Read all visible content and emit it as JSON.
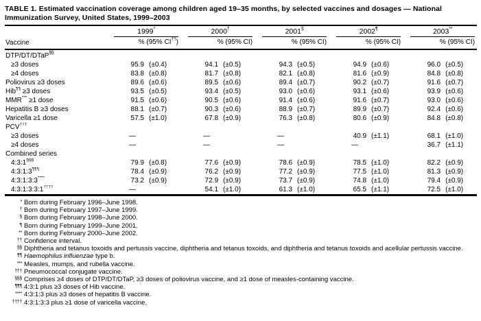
{
  "title": "TABLE 1. Estimated vaccination coverage among children aged 19–35 months, by selected vaccines and dosages — National Immunization Survey, United States, 1999–2003",
  "colors": {
    "text": "#000000",
    "background": "#ffffff",
    "rule": "#000000"
  },
  "table": {
    "vaccine_header": "Vaccine",
    "years": [
      {
        "year": "1999",
        "year_sup": "*",
        "subheader": "% (95% CI",
        "subheader_sup": "††",
        "subheader_close": ")"
      },
      {
        "year": "2000",
        "year_sup": "†",
        "subheader": "% (95% CI",
        "subheader_sup": "",
        "subheader_close": ")"
      },
      {
        "year": "2001",
        "year_sup": "§",
        "subheader": "% (95% CI",
        "subheader_sup": "",
        "subheader_close": ")"
      },
      {
        "year": "2002",
        "year_sup": "¶",
        "subheader": "% (95% CI",
        "subheader_sup": "",
        "subheader_close": ")"
      },
      {
        "year": "2003",
        "year_sup": "**",
        "subheader": "% (95% CI",
        "subheader_sup": "",
        "subheader_close": ")"
      }
    ],
    "rows": [
      {
        "group": true,
        "indent": false,
        "label": "DTP/DT/DTaP",
        "sup": "§§",
        "label2": "",
        "cells": null
      },
      {
        "group": false,
        "indent": true,
        "label": "≥3 doses",
        "sup": "",
        "label2": "",
        "cells": [
          [
            "95.9",
            "(±0.4)"
          ],
          [
            "94.1",
            "(±0.5)"
          ],
          [
            "94.3",
            "(±0.5)"
          ],
          [
            "94.9",
            "(±0.6)"
          ],
          [
            "96.0",
            "(±0.5)"
          ]
        ]
      },
      {
        "group": false,
        "indent": true,
        "label": "≥4 doses",
        "sup": "",
        "label2": "",
        "cells": [
          [
            "83.8",
            "(±0.8)"
          ],
          [
            "81.7",
            "(±0.8)"
          ],
          [
            "82.1",
            "(±0.8)"
          ],
          [
            "81.6",
            "(±0.9)"
          ],
          [
            "84.8",
            "(±0.8)"
          ]
        ]
      },
      {
        "group": false,
        "indent": false,
        "label": "Poliovirus ≥3 doses",
        "sup": "",
        "label2": "",
        "cells": [
          [
            "89.6",
            "(±0.6)"
          ],
          [
            "89.5",
            "(±0.6)"
          ],
          [
            "89.4",
            "(±0.7)"
          ],
          [
            "90.2",
            "(±0.7)"
          ],
          [
            "91.6",
            "(±0.7)"
          ]
        ]
      },
      {
        "group": false,
        "indent": false,
        "label": "Hib",
        "sup": "¶¶",
        "label2": " ≥3 doses",
        "cells": [
          [
            "93.5",
            "(±0.5)"
          ],
          [
            "93.4",
            "(±0.5)"
          ],
          [
            "93.0",
            "(±0.6)"
          ],
          [
            "93.1",
            "(±0.6)"
          ],
          [
            "93.9",
            "(±0.6)"
          ]
        ]
      },
      {
        "group": false,
        "indent": false,
        "label": "MMR",
        "sup": "***",
        "label2": " ≥1 dose",
        "cells": [
          [
            "91.5",
            "(±0.6)"
          ],
          [
            "90.5",
            "(±0.6)"
          ],
          [
            "91.4",
            "(±0.6)"
          ],
          [
            "91.6",
            "(±0.7)"
          ],
          [
            "93.0",
            "(±0.6)"
          ]
        ]
      },
      {
        "group": false,
        "indent": false,
        "label": "Hepatitis B ≥3 doses",
        "sup": "",
        "label2": "",
        "cells": [
          [
            "88.1",
            "(±0.7)"
          ],
          [
            "90.3",
            "(±0.6)"
          ],
          [
            "88.9",
            "(±0.7)"
          ],
          [
            "89.9",
            "(±0.7)"
          ],
          [
            "92.4",
            "(±0.6)"
          ]
        ]
      },
      {
        "group": false,
        "indent": false,
        "label": "Varicella ≥1 dose",
        "sup": "",
        "label2": "",
        "cells": [
          [
            "57.5",
            "(±1.0)"
          ],
          [
            "67.8",
            "(±0.9)"
          ],
          [
            "76.3",
            "(±0.8)"
          ],
          [
            "80.6",
            "(±0.9)"
          ],
          [
            "84.8",
            "(±0.8)"
          ]
        ]
      },
      {
        "group": true,
        "indent": false,
        "label": "PCV",
        "sup": "†††",
        "label2": "",
        "cells": null
      },
      {
        "group": false,
        "indent": true,
        "label": "≥3 doses",
        "sup": "",
        "label2": "",
        "cells": [
          [
            "—",
            ""
          ],
          [
            "—",
            ""
          ],
          [
            "—",
            ""
          ],
          [
            "40.9",
            "(±1.1)"
          ],
          [
            "68.1",
            "(±1.0)"
          ]
        ]
      },
      {
        "group": false,
        "indent": true,
        "label": "≥4 doses",
        "sup": "",
        "label2": "",
        "cells": [
          [
            "—",
            ""
          ],
          [
            "—",
            ""
          ],
          [
            "—",
            ""
          ],
          [
            "—",
            ""
          ],
          [
            "36.7",
            "(±1.1)"
          ]
        ]
      },
      {
        "group": true,
        "indent": false,
        "label": "Combined series",
        "sup": "",
        "label2": "",
        "cells": null
      },
      {
        "group": false,
        "indent": true,
        "label": "4:3:1",
        "sup": "§§§",
        "label2": "",
        "cells": [
          [
            "79.9",
            "(±0.8)"
          ],
          [
            "77.6",
            "(±0.9)"
          ],
          [
            "78.6",
            "(±0.9)"
          ],
          [
            "78.5",
            "(±1.0)"
          ],
          [
            "82.2",
            "(±0.9)"
          ]
        ]
      },
      {
        "group": false,
        "indent": true,
        "label": "4:3:1:3",
        "sup": "¶¶¶",
        "label2": "",
        "cells": [
          [
            "78.4",
            "(±0.9)"
          ],
          [
            "76.2",
            "(±0.9)"
          ],
          [
            "77.2",
            "(±0.9)"
          ],
          [
            "77.5",
            "(±1.0)"
          ],
          [
            "81.3",
            "(±0.9)"
          ]
        ]
      },
      {
        "group": false,
        "indent": true,
        "label": "4:3:1:3:3",
        "sup": "****",
        "label2": "",
        "cells": [
          [
            "73.2",
            "(±0.9)"
          ],
          [
            "72.9",
            "(±0.9)"
          ],
          [
            "73.7",
            "(±0.9)"
          ],
          [
            "74.8",
            "(±1.0)"
          ],
          [
            "79.4",
            "(±0.9)"
          ]
        ]
      },
      {
        "group": false,
        "indent": true,
        "label": "4:3:1:3:3:1",
        "sup": "††††",
        "label2": "",
        "cells": [
          [
            "—",
            ""
          ],
          [
            "54.1",
            "(±1.0)"
          ],
          [
            "61.3",
            "(±1.0)"
          ],
          [
            "65.5",
            "(±1.1)"
          ],
          [
            "72.5",
            "(±1.0)"
          ]
        ]
      }
    ]
  },
  "footnotes": [
    {
      "marker": "*",
      "italic": "",
      "text": "Born during February 1996–June 1998."
    },
    {
      "marker": "†",
      "italic": "",
      "text": "Born during February 1997–June 1999."
    },
    {
      "marker": "§",
      "italic": "",
      "text": "Born during February 1998–June 2000."
    },
    {
      "marker": "¶",
      "italic": "",
      "text": "Born during February 1999–June 2001."
    },
    {
      "marker": "**",
      "italic": "",
      "text": "Born during February 2000–June 2002."
    },
    {
      "marker": "††",
      "italic": "",
      "text": "Confidence interval."
    },
    {
      "marker": "§§",
      "italic": "",
      "text": "Diphtheria and tetanus toxoids and pertussis vaccine, diphtheria and tetanus toxoids, and diphtheria and tetanus toxoids and acellular pertussis vaccine."
    },
    {
      "marker": "¶¶",
      "italic": "Haemophilus influenzae",
      "text": " type b."
    },
    {
      "marker": "***",
      "italic": "",
      "text": "Measles, mumps, and rubella vaccine."
    },
    {
      "marker": "†††",
      "italic": "",
      "text": "Pneumococcal conjugate vaccine."
    },
    {
      "marker": "§§§",
      "italic": "",
      "text": "Comprises ≥4 doses of DTP/DT/DTaP, ≥3 doses of poliovirus vaccine, and ≥1 dose of measles-containing vaccine."
    },
    {
      "marker": "¶¶¶",
      "italic": "",
      "text": "4:3:1 plus ≥3 doses of Hib vaccine."
    },
    {
      "marker": "****",
      "italic": "",
      "text": "4:3:1:3 plus ≥3 doses of hepatitis B vaccine."
    },
    {
      "marker": "††††",
      "italic": "",
      "text": "4:3:1:3:3 plus ≥1 dose of varicella vaccine."
    }
  ]
}
